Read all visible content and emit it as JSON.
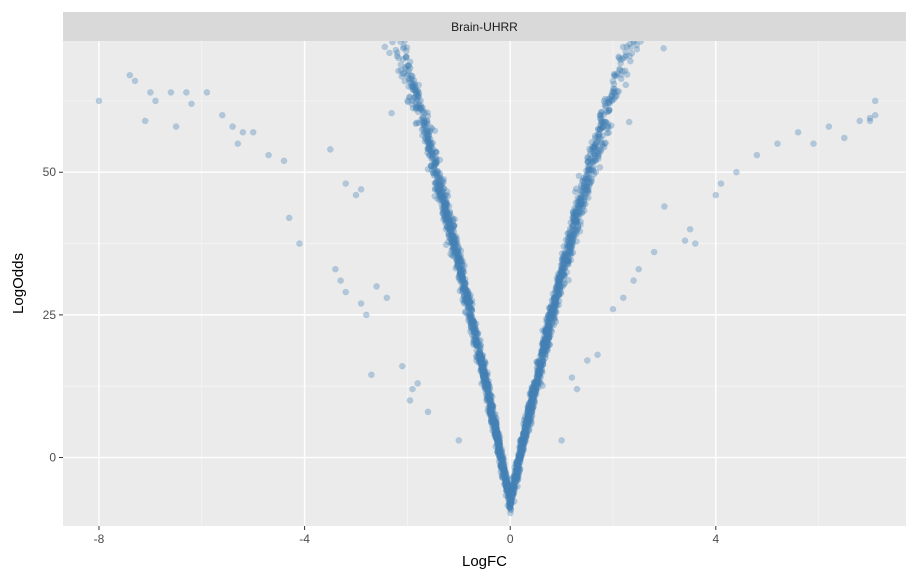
{
  "chart_data": {
    "type": "scatter",
    "facet_label": "Brain-UHRR",
    "xlabel": "LogFC",
    "ylabel": "LogOdds",
    "xlim": [
      -8.7,
      7.7
    ],
    "ylim": [
      -12,
      73
    ],
    "x_ticks": [
      -8,
      -4,
      0,
      4
    ],
    "x_tick_labels": [
      "-8",
      "-4",
      "0",
      "4"
    ],
    "y_ticks": [
      0,
      25,
      50
    ],
    "y_tick_labels": [
      "0",
      "25",
      "50"
    ],
    "grid": true,
    "point_color": "#4682b4",
    "point_alpha": 0.35,
    "sample_points": [
      [
        -8.0,
        62.5
      ],
      [
        -7.4,
        67
      ],
      [
        -7.3,
        66
      ],
      [
        -7.0,
        64
      ],
      [
        -6.9,
        62.5
      ],
      [
        -7.1,
        59
      ],
      [
        -6.5,
        58
      ],
      [
        -6.6,
        64
      ],
      [
        -6.3,
        64
      ],
      [
        -6.2,
        62
      ],
      [
        -5.9,
        64
      ],
      [
        -5.6,
        60
      ],
      [
        -5.4,
        58
      ],
      [
        -5.2,
        57
      ],
      [
        -5.3,
        55
      ],
      [
        -5.0,
        57
      ],
      [
        -4.7,
        53
      ],
      [
        -4.4,
        52
      ],
      [
        -4.3,
        42
      ],
      [
        -3.5,
        54
      ],
      [
        -3.2,
        48
      ],
      [
        -3.0,
        46
      ],
      [
        -2.9,
        47
      ],
      [
        -4.1,
        37.5
      ],
      [
        -3.4,
        33
      ],
      [
        -3.3,
        31
      ],
      [
        -3.2,
        29
      ],
      [
        -2.9,
        27
      ],
      [
        -2.6,
        30
      ],
      [
        -2.4,
        28
      ],
      [
        -2.8,
        25
      ],
      [
        -2.7,
        14.5
      ],
      [
        -2.1,
        16
      ],
      [
        -1.8,
        13
      ],
      [
        -1.9,
        12
      ],
      [
        -1.95,
        10
      ],
      [
        -1.6,
        8
      ],
      [
        -1.0,
        3
      ],
      [
        1.0,
        3
      ],
      [
        1.3,
        12
      ],
      [
        1.2,
        14
      ],
      [
        1.5,
        17
      ],
      [
        1.7,
        18
      ],
      [
        2.0,
        26
      ],
      [
        2.2,
        28
      ],
      [
        2.4,
        31
      ],
      [
        2.5,
        33
      ],
      [
        2.8,
        36
      ],
      [
        3.4,
        38
      ],
      [
        3.6,
        37.5
      ],
      [
        3.5,
        40
      ],
      [
        3.0,
        44
      ],
      [
        4.0,
        46
      ],
      [
        4.1,
        48
      ],
      [
        4.4,
        50
      ],
      [
        4.8,
        53
      ],
      [
        5.2,
        55
      ],
      [
        5.6,
        57
      ],
      [
        5.9,
        55
      ],
      [
        6.2,
        58
      ],
      [
        6.5,
        56
      ],
      [
        6.8,
        59
      ],
      [
        7.1,
        60
      ],
      [
        7.0,
        59.5
      ],
      [
        7.1,
        62.5
      ],
      [
        7.0,
        59
      ]
    ]
  }
}
